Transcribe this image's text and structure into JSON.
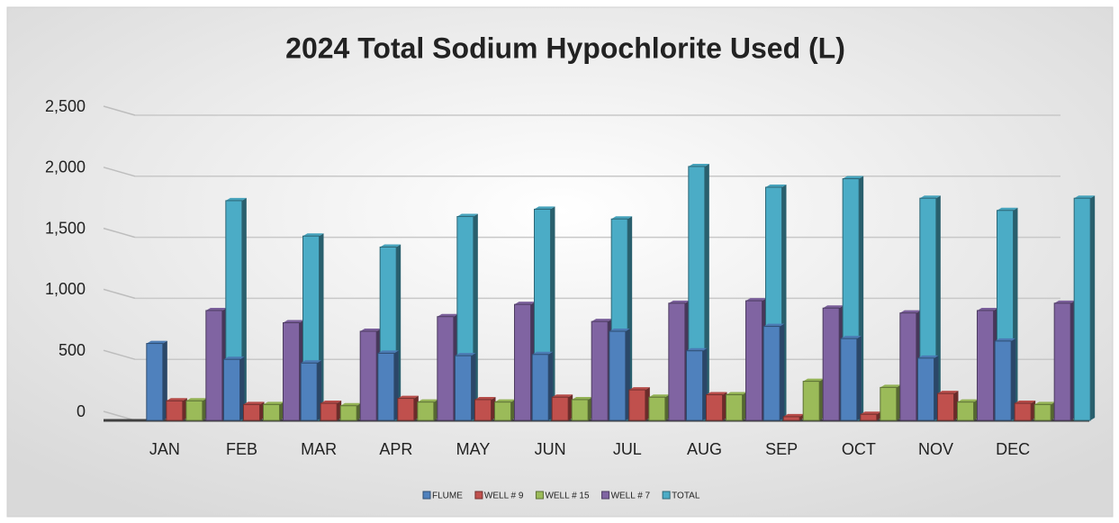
{
  "chart_data": {
    "type": "bar",
    "title": "2024 Total Sodium Hypochlorite Used (L)",
    "categories": [
      "JAN",
      "FEB",
      "MAR",
      "APR",
      "MAY",
      "JUN",
      "JUL",
      "AUG",
      "SEP",
      "OCT",
      "NOV",
      "DEC"
    ],
    "series": [
      {
        "name": "FLUME",
        "color": "#4f81bd",
        "values": [
          630,
          500,
          470,
          550,
          530,
          540,
          730,
          570,
          770,
          670,
          510,
          650
        ]
      },
      {
        "name": "WELL # 9",
        "color": "#c0504d",
        "values": [
          160,
          130,
          140,
          180,
          170,
          190,
          250,
          210,
          30,
          50,
          220,
          140
        ]
      },
      {
        "name": "WELL # 15",
        "color": "#9bbb59",
        "values": [
          160,
          130,
          120,
          150,
          150,
          170,
          190,
          210,
          320,
          270,
          150,
          130
        ]
      },
      {
        "name": "WELL # 7",
        "color": "#8064a2",
        "values": [
          900,
          800,
          730,
          850,
          950,
          810,
          960,
          980,
          920,
          880,
          900,
          960
        ]
      },
      {
        "name": "TOTAL",
        "color": "#4bacc6",
        "values": [
          1800,
          1510,
          1420,
          1670,
          1730,
          1650,
          2080,
          1910,
          1980,
          1820,
          1720,
          1820
        ]
      }
    ],
    "ylim": [
      0,
      2500
    ],
    "yticks": [
      0,
      500,
      {
        "value": 1000,
        "label": "1,000"
      },
      {
        "value": 1500,
        "label": "1,500"
      },
      {
        "value": 2000,
        "label": "2,000"
      },
      {
        "value": 2500,
        "label": "2,500"
      }
    ],
    "grid": true,
    "legend": "bottom"
  }
}
